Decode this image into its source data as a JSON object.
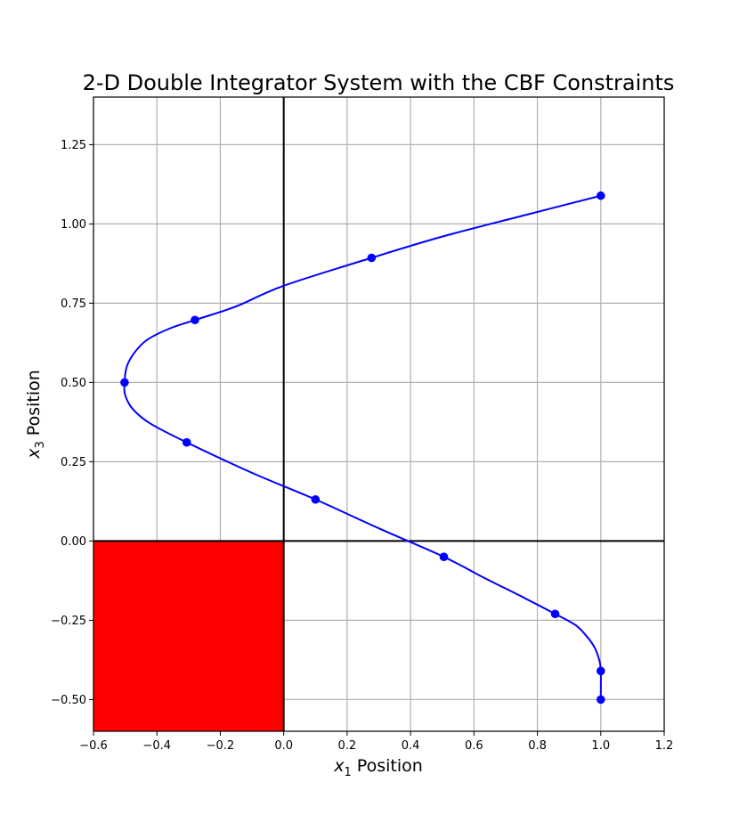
{
  "chart_data": {
    "type": "line",
    "title": "2-D Double Integrator System with the CBF Constraints",
    "xlabel": {
      "var": "x",
      "sub": "1",
      "text": " Position"
    },
    "ylabel": {
      "var": "x",
      "sub": "3",
      "text": " Position"
    },
    "xlim": [
      -0.6,
      1.2
    ],
    "ylim": [
      -0.6,
      1.4
    ],
    "xticks": [
      -0.6,
      -0.4,
      -0.2,
      0.0,
      0.2,
      0.4,
      0.6,
      0.8,
      1.0,
      1.2
    ],
    "xtick_labels": [
      "−0.6",
      "−0.4",
      "−0.2",
      "0.0",
      "0.2",
      "0.4",
      "0.6",
      "0.8",
      "1.0",
      "1.2"
    ],
    "yticks": [
      -0.5,
      -0.25,
      0.0,
      0.25,
      0.5,
      0.75,
      1.0,
      1.25
    ],
    "ytick_labels": [
      "−0.50",
      "−0.25",
      "0.00",
      "0.25",
      "0.50",
      "0.75",
      "1.00",
      "1.25"
    ],
    "grid": true,
    "colors": {
      "trajectory": "#0000ff",
      "unsafe_region": "#ff0000",
      "grid": "#b0b0b0",
      "axes_lines": "#000000"
    },
    "unsafe_region": {
      "x": [
        -0.6,
        0.0
      ],
      "y": [
        -0.6,
        0.0
      ]
    },
    "reference_lines": {
      "x": 0.0,
      "y": 0.0
    },
    "series": [
      {
        "line": [
          [
            1.0,
            -0.5
          ],
          [
            1.0,
            -0.41
          ],
          [
            0.995,
            -0.375
          ],
          [
            0.98,
            -0.335
          ],
          [
            0.955,
            -0.3
          ],
          [
            0.92,
            -0.265
          ],
          [
            0.856,
            -0.23
          ],
          [
            0.75,
            -0.175
          ],
          [
            0.63,
            -0.115
          ],
          [
            0.505,
            -0.05
          ],
          [
            0.3,
            0.04
          ],
          [
            0.1,
            0.131
          ],
          [
            -0.1,
            0.215
          ],
          [
            -0.306,
            0.311
          ],
          [
            -0.42,
            0.37
          ],
          [
            -0.475,
            0.415
          ],
          [
            -0.5,
            0.46
          ],
          [
            -0.502,
            0.5
          ],
          [
            -0.495,
            0.55
          ],
          [
            -0.47,
            0.595
          ],
          [
            -0.43,
            0.635
          ],
          [
            -0.36,
            0.67
          ],
          [
            -0.28,
            0.697
          ],
          [
            -0.15,
            0.74
          ],
          [
            0.0,
            0.805
          ],
          [
            0.277,
            0.893
          ],
          [
            0.5,
            0.96
          ],
          [
            0.75,
            1.025
          ],
          [
            1.0,
            1.089
          ]
        ],
        "markers": [
          [
            1.0,
            -0.5
          ],
          [
            1.0,
            -0.41
          ],
          [
            0.856,
            -0.23
          ],
          [
            0.505,
            -0.05
          ],
          [
            0.1,
            0.131
          ],
          [
            -0.306,
            0.311
          ],
          [
            -0.502,
            0.5
          ],
          [
            -0.28,
            0.697
          ],
          [
            0.277,
            0.893
          ],
          [
            1.0,
            1.089
          ]
        ]
      }
    ]
  }
}
